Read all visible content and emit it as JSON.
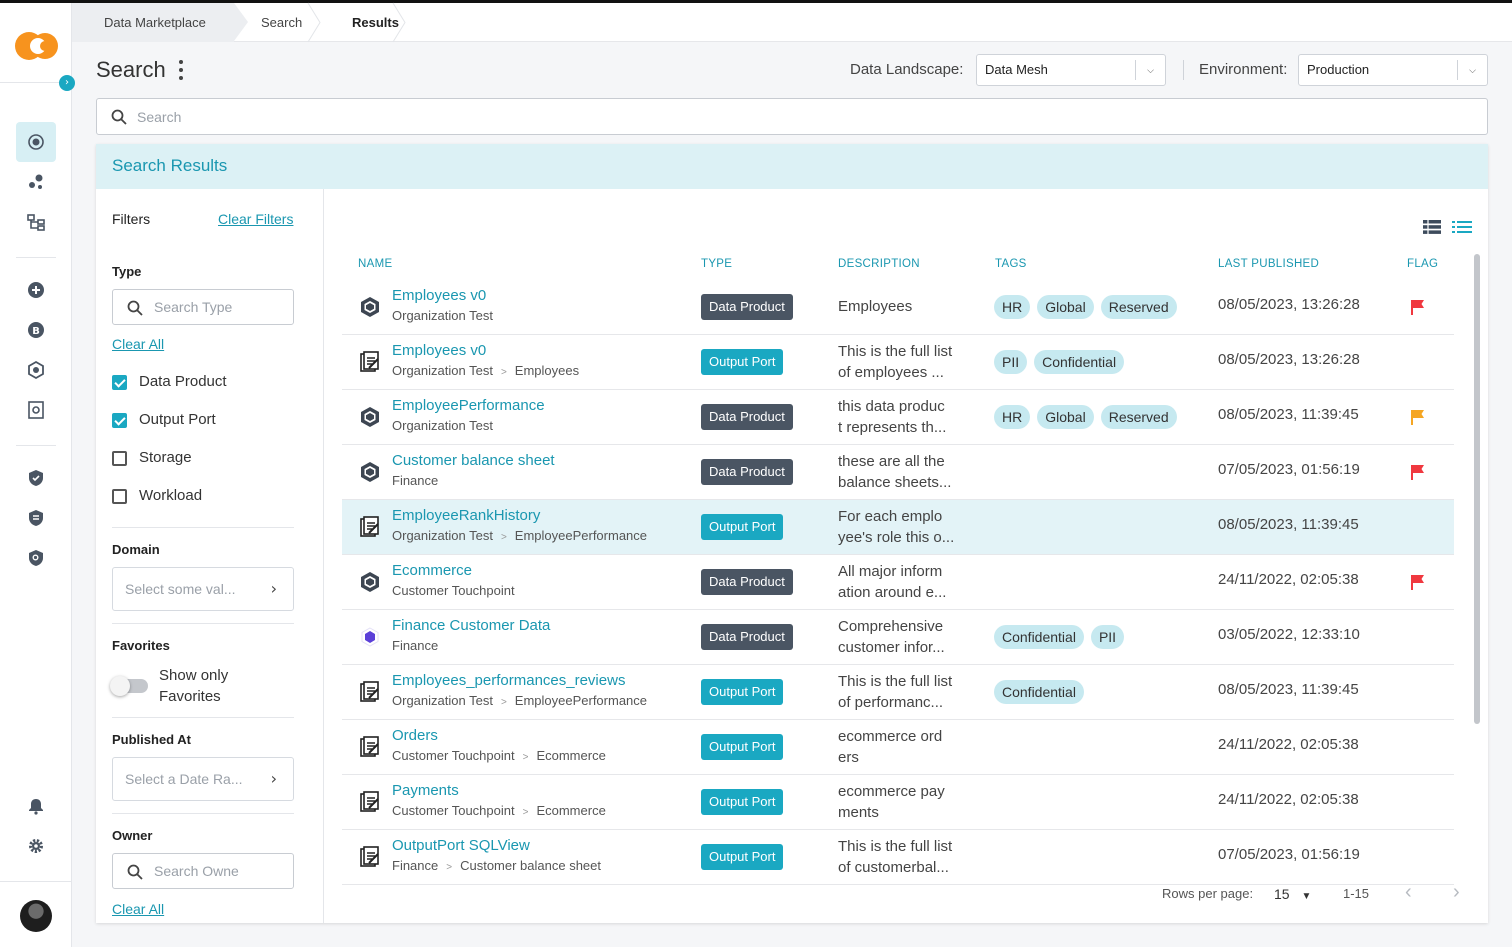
{
  "breadcrumb": [
    "Data Marketplace",
    "Search",
    "Results"
  ],
  "header": {
    "title": "Search",
    "landscape_label": "Data Landscape:",
    "landscape_value": "Data Mesh",
    "environment_label": "Environment:",
    "environment_value": "Production"
  },
  "search": {
    "placeholder": "Search"
  },
  "results": {
    "title": "Search Results"
  },
  "filters": {
    "title": "Filters",
    "clear_filters": "Clear Filters",
    "type": {
      "title": "Type",
      "placeholder": "Search Type",
      "clear": "Clear All",
      "options": [
        {
          "label": "Data Product",
          "checked": true
        },
        {
          "label": "Output Port",
          "checked": true
        },
        {
          "label": "Storage",
          "checked": false
        },
        {
          "label": "Workload",
          "checked": false
        }
      ]
    },
    "domain": {
      "title": "Domain",
      "placeholder": "Select some val..."
    },
    "favorites": {
      "title": "Favorites",
      "label": "Show only Favorites",
      "on": false
    },
    "published": {
      "title": "Published At",
      "placeholder": "Select a Date Ra..."
    },
    "owner": {
      "title": "Owner",
      "placeholder": "Search Owne",
      "clear": "Clear All"
    }
  },
  "table": {
    "columns": [
      "NAME",
      "TYPE",
      "DESCRIPTION",
      "TAGS",
      "LAST PUBLISHED",
      "FLAG"
    ],
    "rows": [
      {
        "icon": "data-product-icon",
        "name": "Employees v0",
        "path": [
          "Organization Test"
        ],
        "type": "Data Product",
        "desc": [
          "Employees"
        ],
        "tags": [
          "HR",
          "Global",
          "Reserved"
        ],
        "date": "08/05/2023, 13:26:28",
        "flag": "#f0383f"
      },
      {
        "icon": "output-port-icon",
        "name": "Employees v0",
        "path": [
          "Organization Test",
          "Employees"
        ],
        "type": "Output Port",
        "desc": [
          "This is the full list",
          "of employees ..."
        ],
        "tags": [
          "PII",
          "Confidential"
        ],
        "date": "08/05/2023, 13:26:28",
        "flag": ""
      },
      {
        "icon": "data-product-icon",
        "name": "EmployeePerformance",
        "path": [
          "Organization Test"
        ],
        "type": "Data Product",
        "desc": [
          "this data produc",
          "t represents th..."
        ],
        "tags": [
          "HR",
          "Global",
          "Reserved"
        ],
        "date": "08/05/2023, 11:39:45",
        "flag": "#f5a623"
      },
      {
        "icon": "data-product-icon",
        "name": "Customer balance sheet",
        "path": [
          "Finance"
        ],
        "type": "Data Product",
        "desc": [
          "these are all the",
          "balance sheets..."
        ],
        "tags": [],
        "date": "07/05/2023, 01:56:19",
        "flag": "#f0383f"
      },
      {
        "icon": "output-port-icon",
        "name": "EmployeeRankHistory",
        "path": [
          "Organization Test",
          "EmployeePerformance"
        ],
        "type": "Output Port",
        "desc": [
          "For each emplo",
          "yee's role this o..."
        ],
        "tags": [],
        "date": "08/05/2023, 11:39:45",
        "flag": "",
        "highlight": true
      },
      {
        "icon": "data-product-icon",
        "name": "Ecommerce",
        "path": [
          "Customer Touchpoint"
        ],
        "type": "Data Product",
        "desc": [
          "All major inform",
          "ation around e..."
        ],
        "tags": [],
        "date": "24/11/2022, 02:05:38",
        "flag": "#f0383f"
      },
      {
        "icon": "data-product-purple-icon",
        "name": "Finance Customer Data",
        "path": [
          "Finance"
        ],
        "type": "Data Product",
        "desc": [
          "Comprehensive",
          "customer infor..."
        ],
        "tags": [
          "Confidential",
          "PII"
        ],
        "date": "03/05/2022, 12:33:10",
        "flag": ""
      },
      {
        "icon": "output-port-icon",
        "name": "Employees_performances_reviews",
        "path": [
          "Organization Test",
          "EmployeePerformance"
        ],
        "type": "Output Port",
        "desc": [
          "This is the full list",
          "of performanc..."
        ],
        "tags": [
          "Confidential"
        ],
        "date": "08/05/2023, 11:39:45",
        "flag": ""
      },
      {
        "icon": "output-port-icon",
        "name": "Orders",
        "path": [
          "Customer Touchpoint",
          "Ecommerce"
        ],
        "type": "Output Port",
        "desc": [
          "ecommerce ord",
          "ers"
        ],
        "tags": [],
        "date": "24/11/2022, 02:05:38",
        "flag": ""
      },
      {
        "icon": "output-port-icon",
        "name": "Payments",
        "path": [
          "Customer Touchpoint",
          "Ecommerce"
        ],
        "type": "Output Port",
        "desc": [
          "ecommerce pay",
          "ments"
        ],
        "tags": [],
        "date": "24/11/2022, 02:05:38",
        "flag": ""
      },
      {
        "icon": "output-port-icon",
        "name": "OutputPort SQLView",
        "path": [
          "Finance",
          "Customer balance sheet"
        ],
        "type": "Output Port",
        "desc": [
          "This is the full list",
          "of customerbal..."
        ],
        "tags": [],
        "date": "07/05/2023, 01:56:19",
        "flag": ""
      }
    ]
  },
  "pagination": {
    "rows_label": "Rows per page:",
    "rows_value": "15",
    "range": "1-15"
  },
  "colors": {
    "accent": "#1aa8c2",
    "flag_red": "#f0383f",
    "flag_orange": "#f5a623",
    "logo_orange": "#f7931e"
  }
}
